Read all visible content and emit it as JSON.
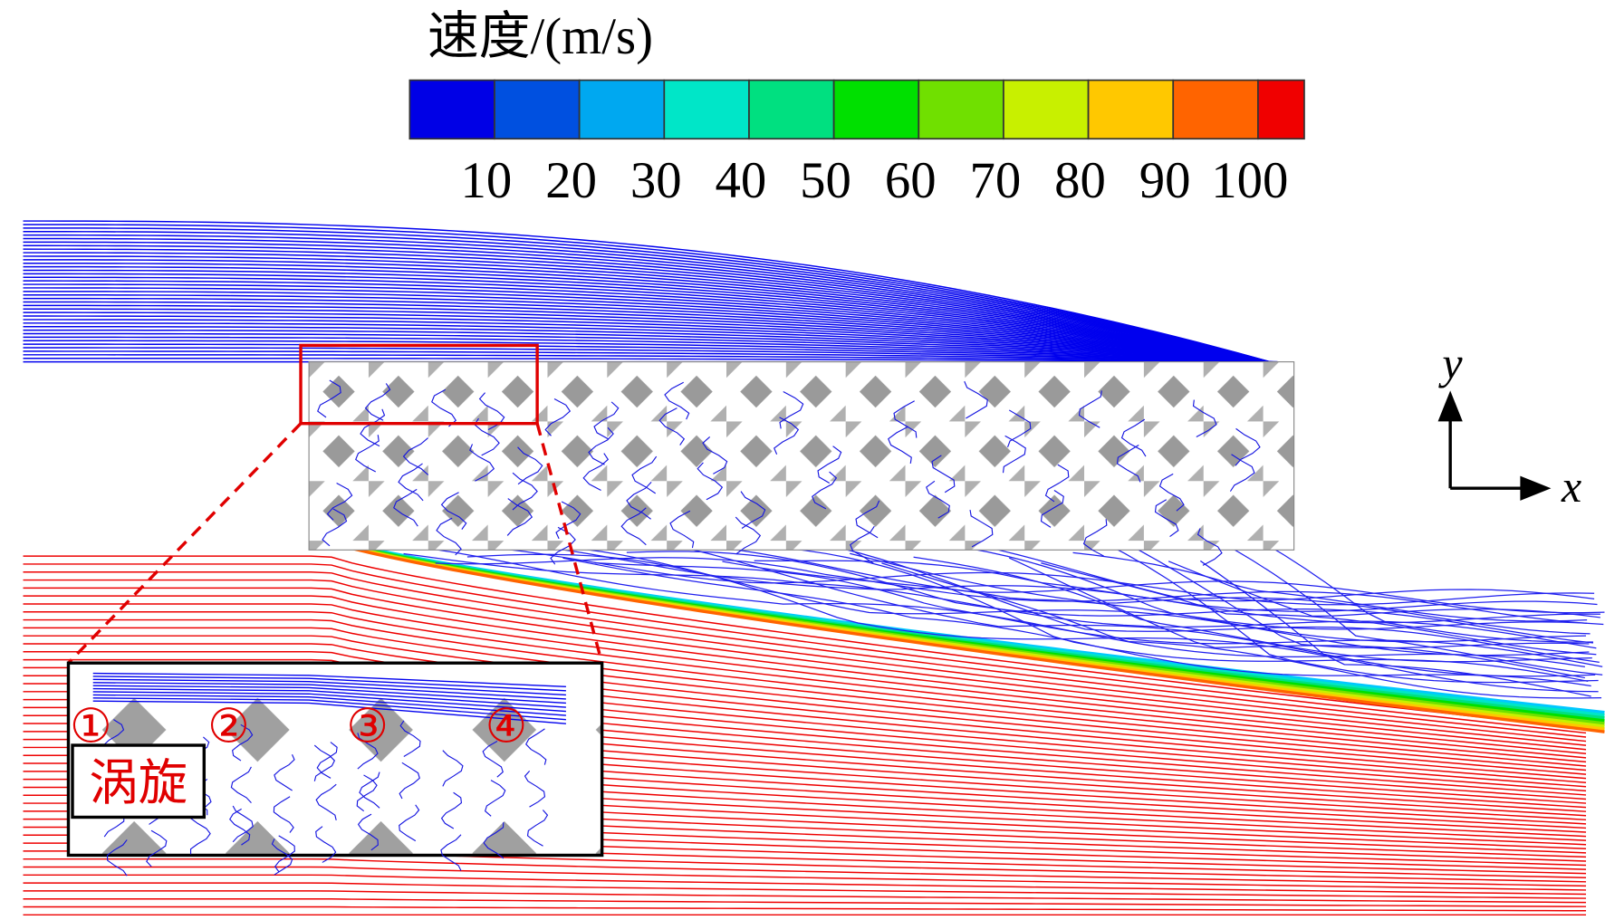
{
  "colorbar": {
    "title": "速度/(m/s)",
    "ticks": [
      10,
      20,
      30,
      40,
      50,
      60,
      70,
      80,
      90,
      100
    ],
    "colors": [
      "#0000e6",
      "#0050e0",
      "#00a8f0",
      "#00e6c8",
      "#00e080",
      "#00e000",
      "#70e000",
      "#c8f000",
      "#ffc800",
      "#ff6400",
      "#f00000"
    ]
  },
  "inset": {
    "markers": [
      "①",
      "②",
      "③",
      "④"
    ],
    "label": "涡旋"
  },
  "axes": {
    "x": "x",
    "y": "y"
  }
}
